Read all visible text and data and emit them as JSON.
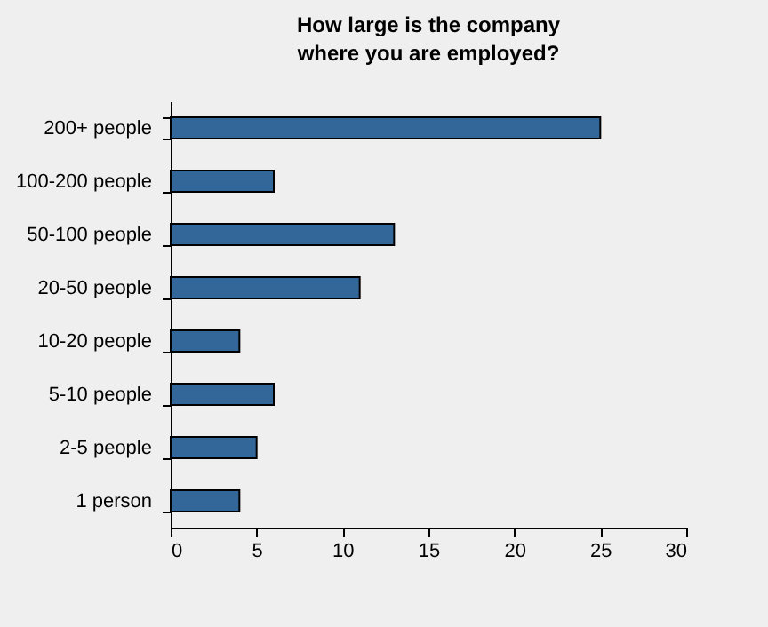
{
  "chart_data": {
    "type": "bar",
    "orientation": "horizontal",
    "title": "How large is the company where you are employed?",
    "categories": [
      "200+ people",
      "100-200 people",
      "50-100 people",
      "20-50 people",
      "10-20 people",
      "5-10 people",
      "2-5 people",
      "1 person"
    ],
    "values": [
      25,
      6,
      13,
      11,
      4,
      6,
      5,
      4
    ],
    "color": "#336699",
    "xlim": [
      0,
      30
    ],
    "xticks": [
      0,
      5,
      10,
      15,
      20,
      25,
      30
    ],
    "grid": false
  }
}
